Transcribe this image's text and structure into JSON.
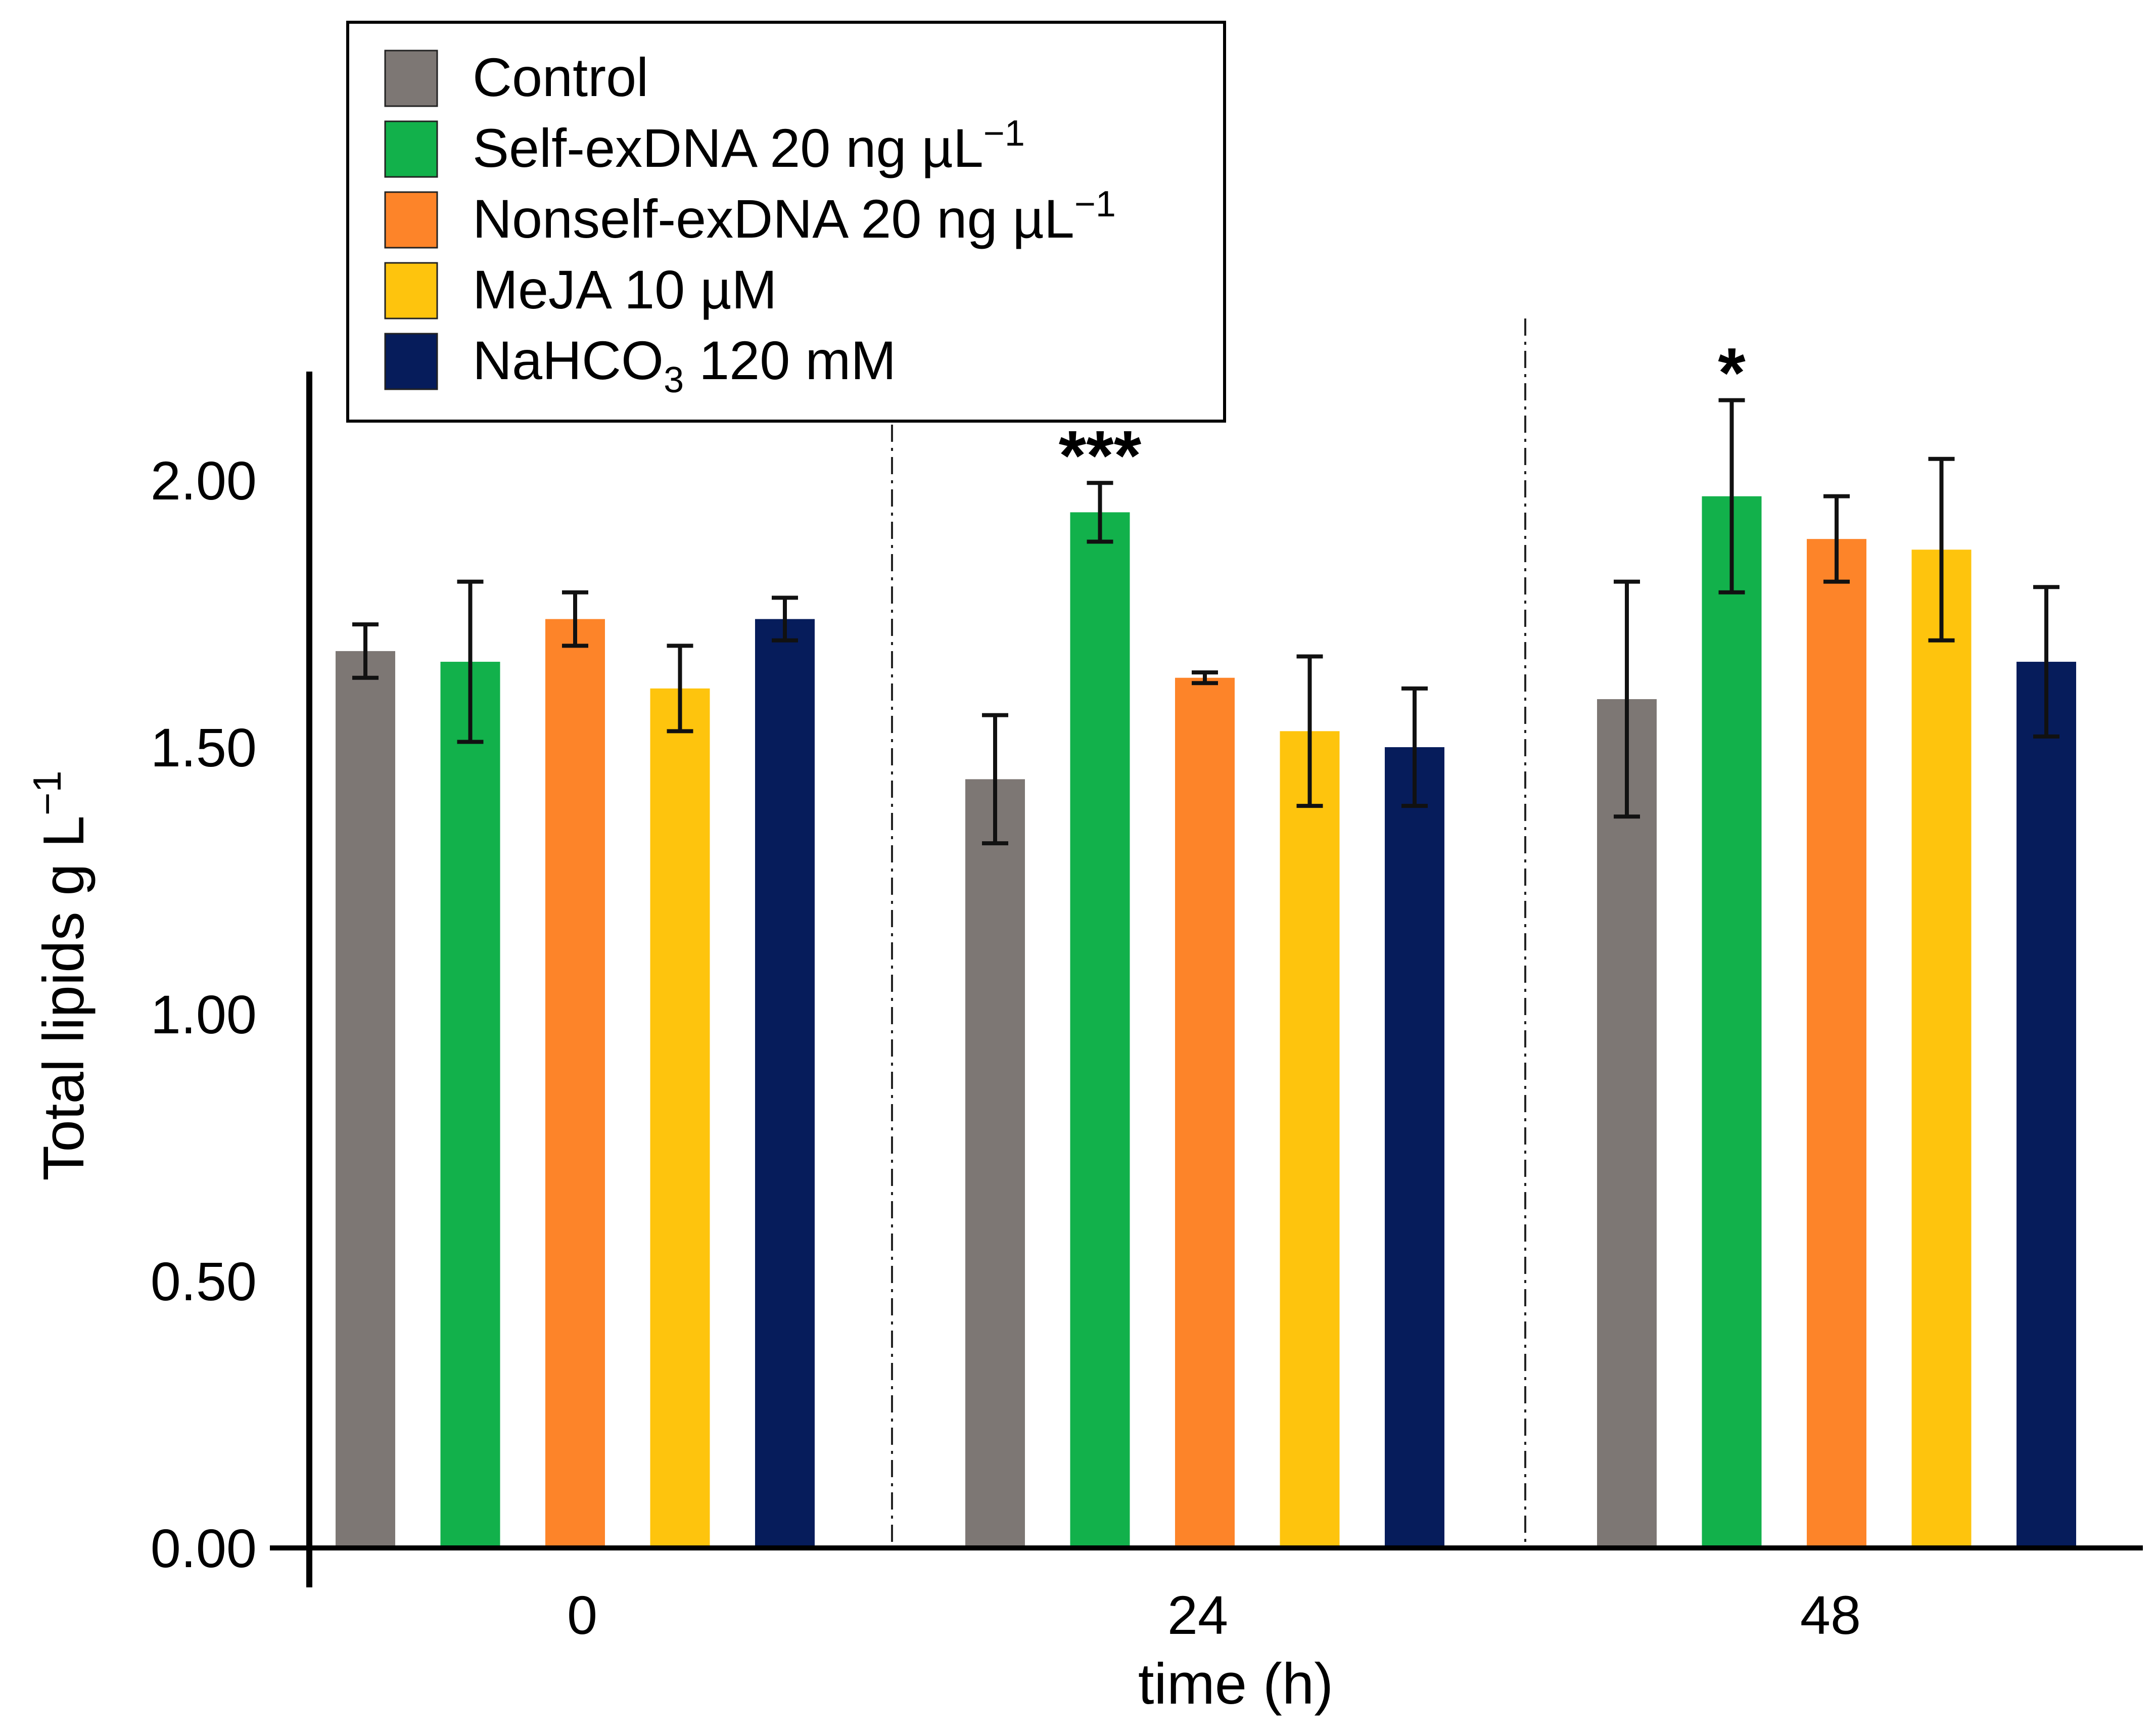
{
  "chart_data": {
    "type": "bar",
    "title": "",
    "xlabel": "time (h)",
    "ylabel": "Total lipids g L",
    "ylabel_superscript": "−1",
    "ylim": [
      0,
      2.2
    ],
    "yticks": [
      0.0,
      0.5,
      1.0,
      1.5,
      2.0
    ],
    "ytick_labels": [
      "0.00",
      "0.50",
      "1.00",
      "1.50",
      "2.00"
    ],
    "categories": [
      "0",
      "24",
      "48"
    ],
    "legend_position": "top-left",
    "series": [
      {
        "name": "Control",
        "legend_label": "Control",
        "legend_superscript": "",
        "color": "#7d7774",
        "values": [
          1.68,
          1.44,
          1.59
        ],
        "errors": [
          0.05,
          0.12,
          0.22
        ]
      },
      {
        "name": "Self-exDNA 20 ng µL−1",
        "legend_label": "Self-exDNA 20 ng µL",
        "legend_superscript": "−1",
        "color": "#12b14b",
        "values": [
          1.66,
          1.94,
          1.97
        ],
        "errors": [
          0.15,
          0.055,
          0.18
        ]
      },
      {
        "name": "Nonself-exDNA 20 ng µL−1",
        "legend_label": "Nonself-exDNA 20 ng µL",
        "legend_superscript": "−1",
        "color": "#fd8429",
        "values": [
          1.74,
          1.63,
          1.89
        ],
        "errors": [
          0.05,
          0.01,
          0.08
        ]
      },
      {
        "name": "MeJA 10 µM",
        "legend_label": "MeJA 10 µM",
        "legend_superscript": "",
        "color": "#fec40d",
        "values": [
          1.61,
          1.53,
          1.87
        ],
        "errors": [
          0.08,
          0.14,
          0.17
        ]
      },
      {
        "name": "NaHCO3 120 mM",
        "legend_label": "NaHCO",
        "legend_subscript": "3",
        "legend_suffix": " 120 mM",
        "color": "#061c5b",
        "values": [
          1.74,
          1.5,
          1.66
        ],
        "errors": [
          0.04,
          0.11,
          0.14
        ]
      }
    ],
    "annotations": [
      {
        "text": "***",
        "category_index": 1,
        "series_index": 1
      },
      {
        "text": "*",
        "category_index": 2,
        "series_index": 1
      }
    ]
  }
}
